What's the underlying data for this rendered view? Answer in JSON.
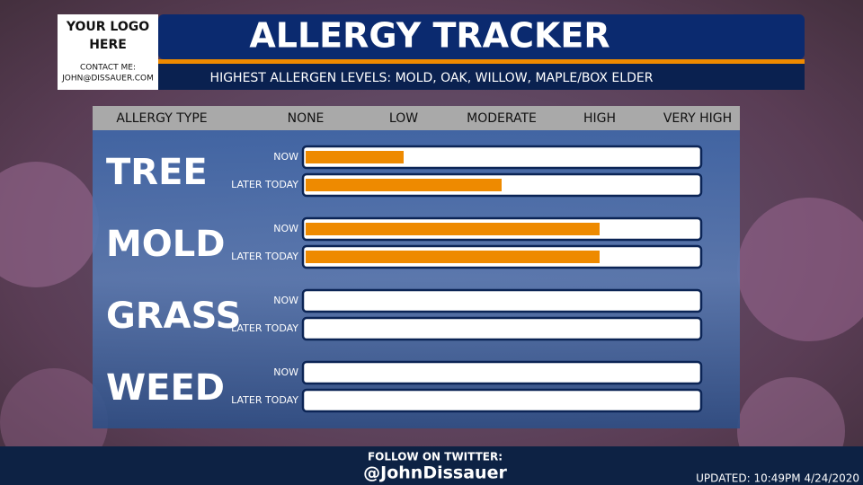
{
  "header": {
    "logo": "YOUR LOGO HERE",
    "contact_label": "CONTACT ME:",
    "contact": "JOHN@DISSAUER.COM",
    "title": "ALLERGY TRACKER",
    "subtitle": "HIGHEST ALLERGEN LEVELS: MOLD, OAK, WILLOW,  MAPLE/BOX ELDER"
  },
  "chart_data": {
    "type": "bar",
    "orientation": "horizontal",
    "category_header": "ALLERGY TYPE",
    "categories": [
      "TREE",
      "MOLD",
      "GRASS",
      "WEED"
    ],
    "series": [
      {
        "name": "NOW",
        "color": "#ee8a00",
        "values": [
          1,
          3,
          0,
          0
        ]
      },
      {
        "name": "LATER TODAY",
        "color": "#ee8a00",
        "values": [
          2,
          3,
          0,
          0
        ]
      }
    ],
    "xlim": [
      0,
      4
    ],
    "xticks": [
      {
        "value": 0,
        "label": "NONE"
      },
      {
        "value": 1,
        "label": "LOW"
      },
      {
        "value": 2,
        "label": "MODERATE"
      },
      {
        "value": 3,
        "label": "HIGH"
      },
      {
        "value": 4,
        "label": "VERY HIGH"
      }
    ],
    "grid": false
  },
  "footer": {
    "follow": "FOLLOW ON TWITTER:",
    "handle": "@JohnDissauer",
    "updated": "UPDATED: 10:49PM 4/24/2020"
  }
}
